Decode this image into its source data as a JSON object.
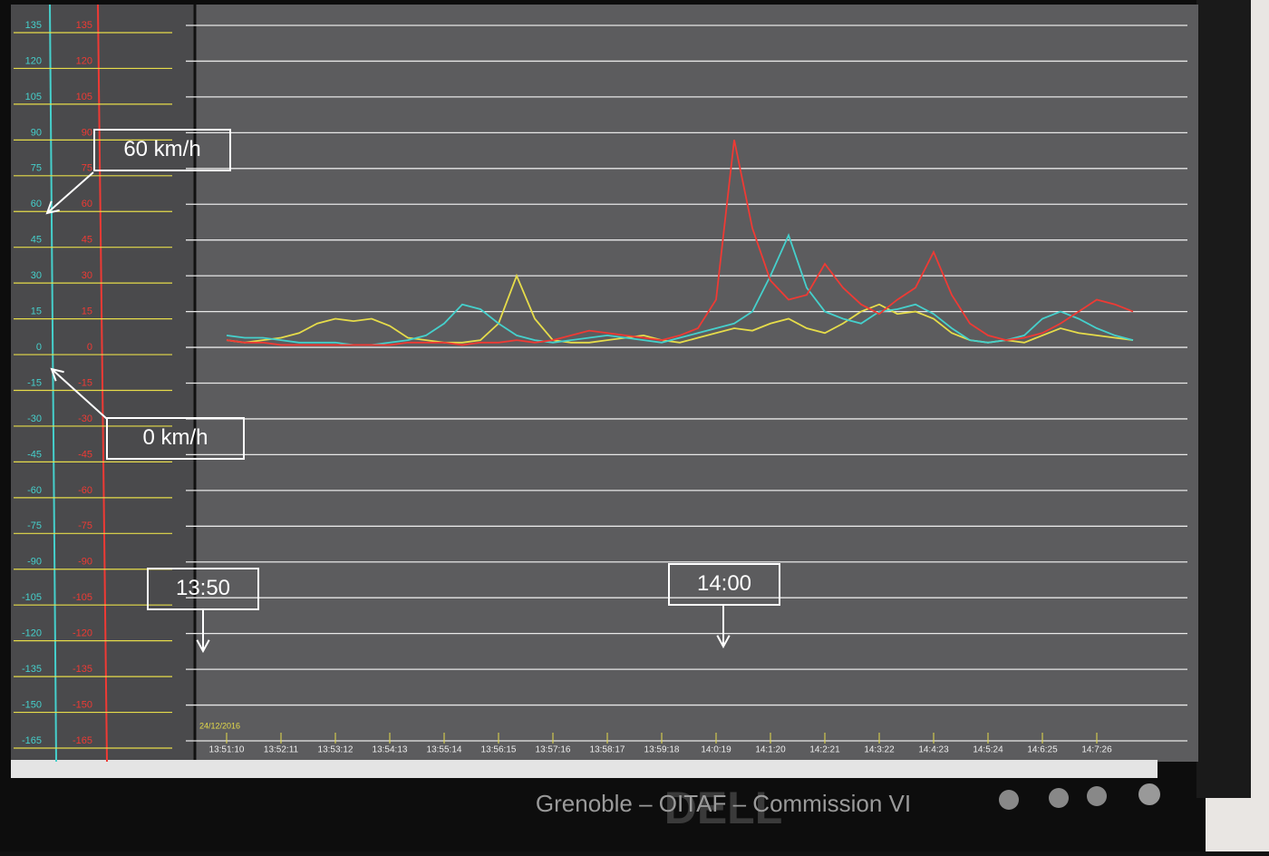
{
  "chart_data": {
    "type": "line",
    "date": "24/12/2016",
    "categories": [
      "13:51:10",
      null,
      null,
      "13:52:11",
      null,
      null,
      "13:53:12",
      null,
      null,
      "13:54:13",
      null,
      null,
      "13:55:14",
      null,
      null,
      "13:56:15",
      null,
      null,
      "13:57:16",
      null,
      null,
      "13:58:17",
      null,
      null,
      "13:59:18",
      null,
      null,
      "14:0:19",
      null,
      null,
      "14:1:20",
      null,
      null,
      "14:2:21",
      null,
      null,
      "14:3:22",
      null,
      null,
      "14:4:23",
      null,
      null,
      "14:5:24",
      null,
      null,
      "14:6:25",
      null,
      null,
      "14:7:26",
      null,
      null
    ],
    "series": [
      {
        "color": "#ef3a34",
        "values": [
          3,
          2,
          2,
          1,
          1,
          1,
          1,
          1,
          1,
          1,
          2,
          2,
          2,
          1,
          2,
          2,
          3,
          2,
          3,
          5,
          7,
          6,
          5,
          4,
          3,
          5,
          8,
          20,
          87,
          50,
          28,
          20,
          22,
          35,
          25,
          18,
          14,
          20,
          25,
          40,
          22,
          10,
          5,
          3,
          4,
          6,
          10,
          15,
          20,
          18,
          15
        ]
      },
      {
        "color": "#45d0cc",
        "values": [
          5,
          4,
          4,
          3,
          2,
          2,
          2,
          1,
          1,
          2,
          3,
          5,
          10,
          18,
          16,
          10,
          5,
          3,
          2,
          3,
          4,
          5,
          4,
          3,
          2,
          4,
          6,
          8,
          10,
          15,
          30,
          47,
          25,
          15,
          12,
          10,
          15,
          16,
          18,
          14,
          8,
          3,
          2,
          3,
          5,
          12,
          15,
          12,
          8,
          5,
          3
        ]
      },
      {
        "color": "#e6dc4a",
        "values": [
          3,
          2,
          3,
          4,
          6,
          10,
          12,
          11,
          12,
          9,
          4,
          3,
          2,
          2,
          3,
          10,
          30,
          12,
          3,
          2,
          2,
          3,
          4,
          5,
          3,
          2,
          4,
          6,
          8,
          7,
          10,
          12,
          8,
          6,
          10,
          15,
          18,
          14,
          15,
          12,
          6,
          3,
          2,
          3,
          2,
          5,
          8,
          6,
          5,
          4,
          3
        ]
      }
    ],
    "ylim": [
      -165,
      135
    ],
    "yticks": [
      135,
      120,
      105,
      90,
      75,
      60,
      45,
      30,
      15,
      0,
      -15,
      -30,
      -45,
      -60,
      -75,
      -90,
      -105,
      -120,
      -135,
      -150,
      -165
    ],
    "grid": true,
    "annotations": [
      "60 km/h",
      "0 km/h",
      "13:50",
      "14:00"
    ]
  },
  "footer": "Grenoble – OITAF – Commission VI",
  "monitor_brand": "DELL"
}
